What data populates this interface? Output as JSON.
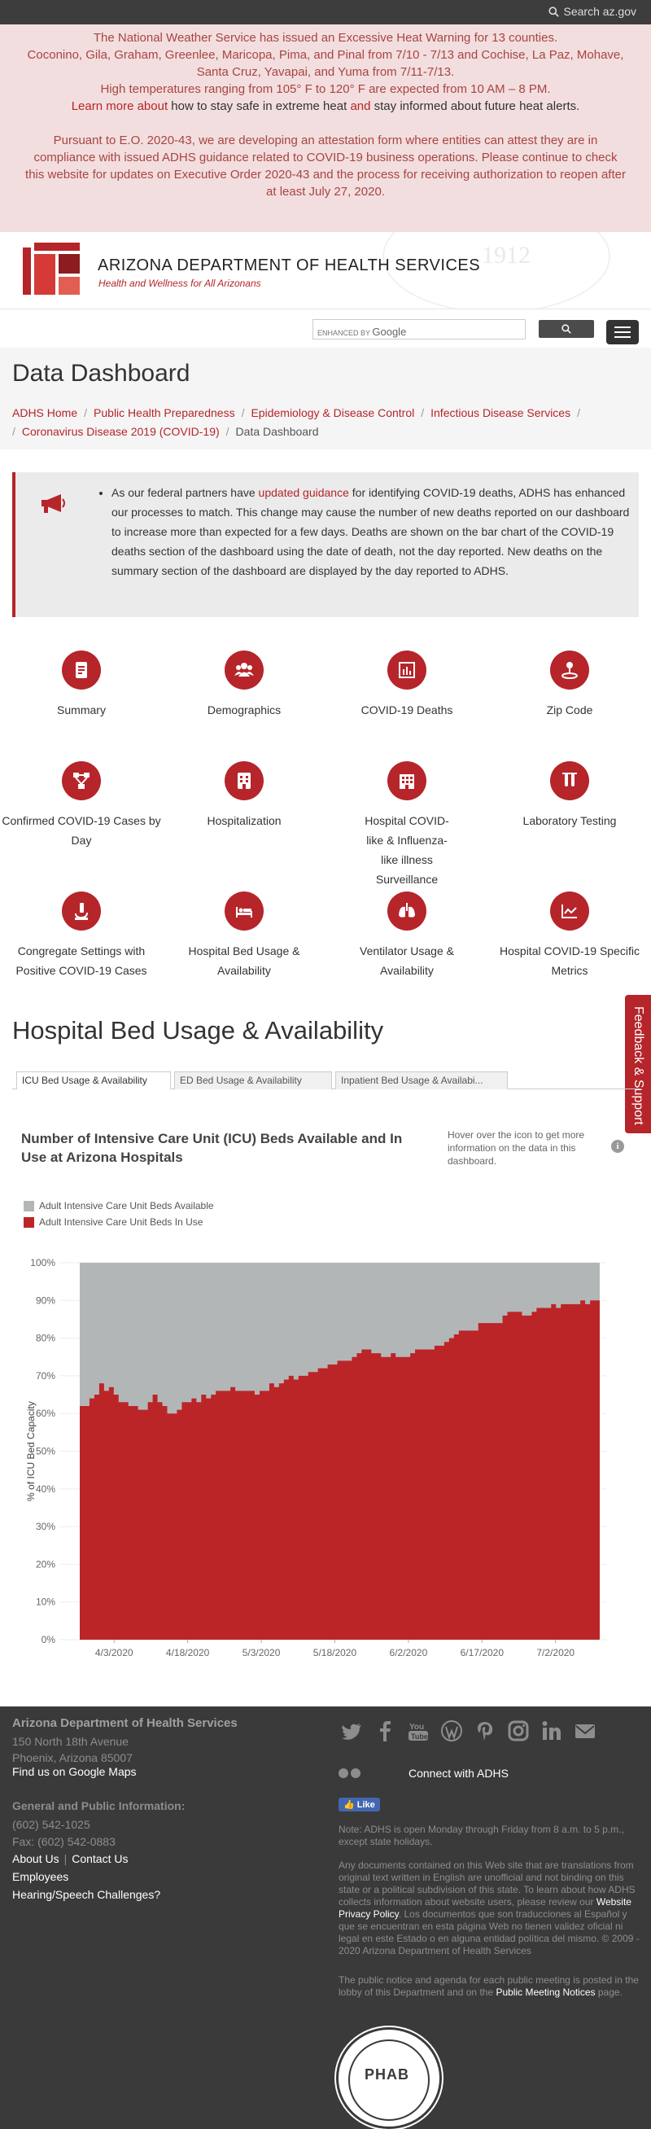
{
  "topbar": {
    "search_label": "Search az.gov"
  },
  "alert": {
    "heat_line1": "The National Weather Service has issued an Excessive Heat Warning for 13 counties.",
    "heat_line2": "Coconino, Gila, Graham, Greenlee, Maricopa, Pima, and Pinal from 7/10 - 7/13 and Cochise, La Paz, Mohave, Santa Cruz, Yavapai, and Yuma from 7/11-7/13.",
    "heat_line3": "High temperatures ranging from 105° F to 120° F are expected from 10 AM – 8 PM.",
    "heat_learn_link": "Learn more about",
    "heat_learn_text1": " how to stay safe in extreme heat ",
    "heat_and": "and",
    "heat_learn_text2": " stay informed about future heat alerts.",
    "eo_text": "Pursuant to E.O. 2020-43, we are developing an attestation form where entities can attest they are in compliance with issued ADHS guidance related to COVID-19 business operations. Please continue to check this website for updates on Executive Order 2020-43 and the process for receiving authorization to reopen after at least July 27, 2020."
  },
  "header": {
    "agency_name": "ARIZONA DEPARTMENT OF HEALTH SERVICES",
    "tagline": "Health and Wellness for All Arizonans",
    "seal_year": "1912"
  },
  "search": {
    "enhanced_label": "ENHANCED BY",
    "google": "Google"
  },
  "page": {
    "title": "Data Dashboard",
    "breadcrumbs": [
      "ADHS Home",
      "Public Health Preparedness",
      "Epidemiology & Disease Control",
      "Infectious Disease Services",
      "Coronavirus Disease 2019 (COVID-19)",
      "Data Dashboard"
    ]
  },
  "notice": {
    "text_before": "As our federal partners have ",
    "link": "updated guidance",
    "text_after": " for identifying COVID-19 deaths, ADHS has enhanced our processes to match. This change may cause the number of new deaths reported on our dashboard to increase more than expected for a few days. Deaths are shown on the bar chart of the COVID-19 deaths section of the dashboard using the date of death, not the day reported. New deaths on the summary section of the dashboard are displayed by the day reported to ADHS."
  },
  "tiles": [
    {
      "label": "Summary",
      "icon": "document-icon"
    },
    {
      "label": "Demographics",
      "icon": "people-icon"
    },
    {
      "label": "COVID-19 Deaths",
      "icon": "bar-chart-icon"
    },
    {
      "label": "Zip Code",
      "icon": "map-pin-icon"
    },
    {
      "label": "Confirmed COVID-19 Cases by Day",
      "icon": "network-icon"
    },
    {
      "label": "Hospitalization",
      "icon": "hospital-icon"
    },
    {
      "label": "Hospital COVID-like & Influenza-like illness Surveillance",
      "icon": "building-icon"
    },
    {
      "label": "Laboratory Testing",
      "icon": "test-tubes-icon"
    },
    {
      "label": "Congregate Settings with Positive COVID-19 Cases",
      "icon": "microscope-icon"
    },
    {
      "label": "Hospital Bed Usage & Availability",
      "icon": "bed-icon"
    },
    {
      "label": "Ventilator Usage & Availability",
      "icon": "lungs-icon"
    },
    {
      "label": "Hospital COVID-19 Specific Metrics",
      "icon": "trend-icon"
    }
  ],
  "section": {
    "heading": "Hospital Bed Usage & Availability"
  },
  "tabs": [
    "ICU Bed Usage & Availability",
    "ED Bed Usage & Availability",
    "Inpatient Bed Usage & Availabi..."
  ],
  "chart_panel": {
    "title": "Number of Intensive Care Unit (ICU) Beds Available and In Use at Arizona Hospitals",
    "hover_note": "Hover over the icon to get more information on the data in this dashboard.",
    "info_glyph": "i"
  },
  "colors": {
    "accent": "#b5252a",
    "available": "#b3b6b7",
    "in_use": "#bb2528"
  },
  "chart_data": {
    "type": "area",
    "stacked": true,
    "ylabel": "% of ICU Bed Capacity",
    "ylim": [
      0,
      100
    ],
    "yticks": [
      "0%",
      "10%",
      "20%",
      "30%",
      "40%",
      "50%",
      "60%",
      "70%",
      "80%",
      "90%",
      "100%"
    ],
    "xticks": [
      "4/3/2020",
      "4/18/2020",
      "5/3/2020",
      "5/18/2020",
      "6/2/2020",
      "6/17/2020",
      "7/2/2020"
    ],
    "x_start": "3/27/2020",
    "x_end": "7/11/2020",
    "series": [
      {
        "name": "Adult Intensive Care Unit Beds Available",
        "color": "#b3b6b7"
      },
      {
        "name": "Adult Intensive Care Unit Beds In Use",
        "color": "#bb2528"
      }
    ],
    "in_use_pct": [
      62,
      62,
      64,
      65,
      68,
      66,
      67,
      65,
      63,
      63,
      62,
      62,
      61,
      61,
      63,
      65,
      63,
      62,
      60,
      60,
      61,
      63,
      63,
      64,
      63,
      65,
      64,
      65,
      66,
      66,
      66,
      67,
      66,
      66,
      66,
      66,
      65,
      66,
      66,
      68,
      67,
      68,
      69,
      70,
      69,
      70,
      70,
      71,
      71,
      72,
      72,
      73,
      73,
      74,
      74,
      74,
      75,
      76,
      77,
      77,
      76,
      76,
      75,
      75,
      76,
      75,
      75,
      75,
      76,
      77,
      77,
      77,
      77,
      78,
      78,
      79,
      80,
      81,
      82,
      82,
      82,
      82,
      84,
      84,
      84,
      84,
      84,
      86,
      87,
      87,
      87,
      86,
      86,
      87,
      88,
      88,
      88,
      89,
      88,
      89,
      89,
      89,
      89,
      90,
      89,
      90,
      90
    ]
  },
  "feedback": {
    "label": "Feedback & Support"
  },
  "footer": {
    "org": "Arizona Department of Health Services",
    "address1": "150 North 18th Avenue",
    "address2": "Phoenix, Arizona 85007",
    "maps": "Find us on Google Maps",
    "gen_info": "General and Public Information:",
    "phone": "(602) 542-1025",
    "fax": "Fax: (602) 542-0883",
    "about": "About Us",
    "contact": "Contact Us",
    "employees": "Employees",
    "hearing": "Hearing/Speech Challenges?",
    "connect": "Connect with ADHS",
    "like": "Like",
    "hours_note": "Note: ADHS is open Monday through Friday from 8 a.m. to 5 p.m., except state holidays.",
    "translation_note_1": "Any documents contained on this Web site that are translations from original text written in English are unofficial and not binding on this state or a political subdivision of this state. To learn about how ADHS collects information about website users, please review our ",
    "privacy_link": "Website Privacy Policy",
    "translation_note_2": ". Los documentos que son traducciones al Español y que se encuentran en esta página Web no tienen validez oficial ni legal en este Estado o en alguna entidad política del mismo. © 2009 - 2020 Arizona Department of Health Services",
    "public_notice_1": "The public notice and agenda for each public meeting is posted in the lobby of this Department and on the ",
    "public_notice_link": "Public Meeting Notices",
    "public_notice_2": " page.",
    "badge_text": "PHAB"
  }
}
